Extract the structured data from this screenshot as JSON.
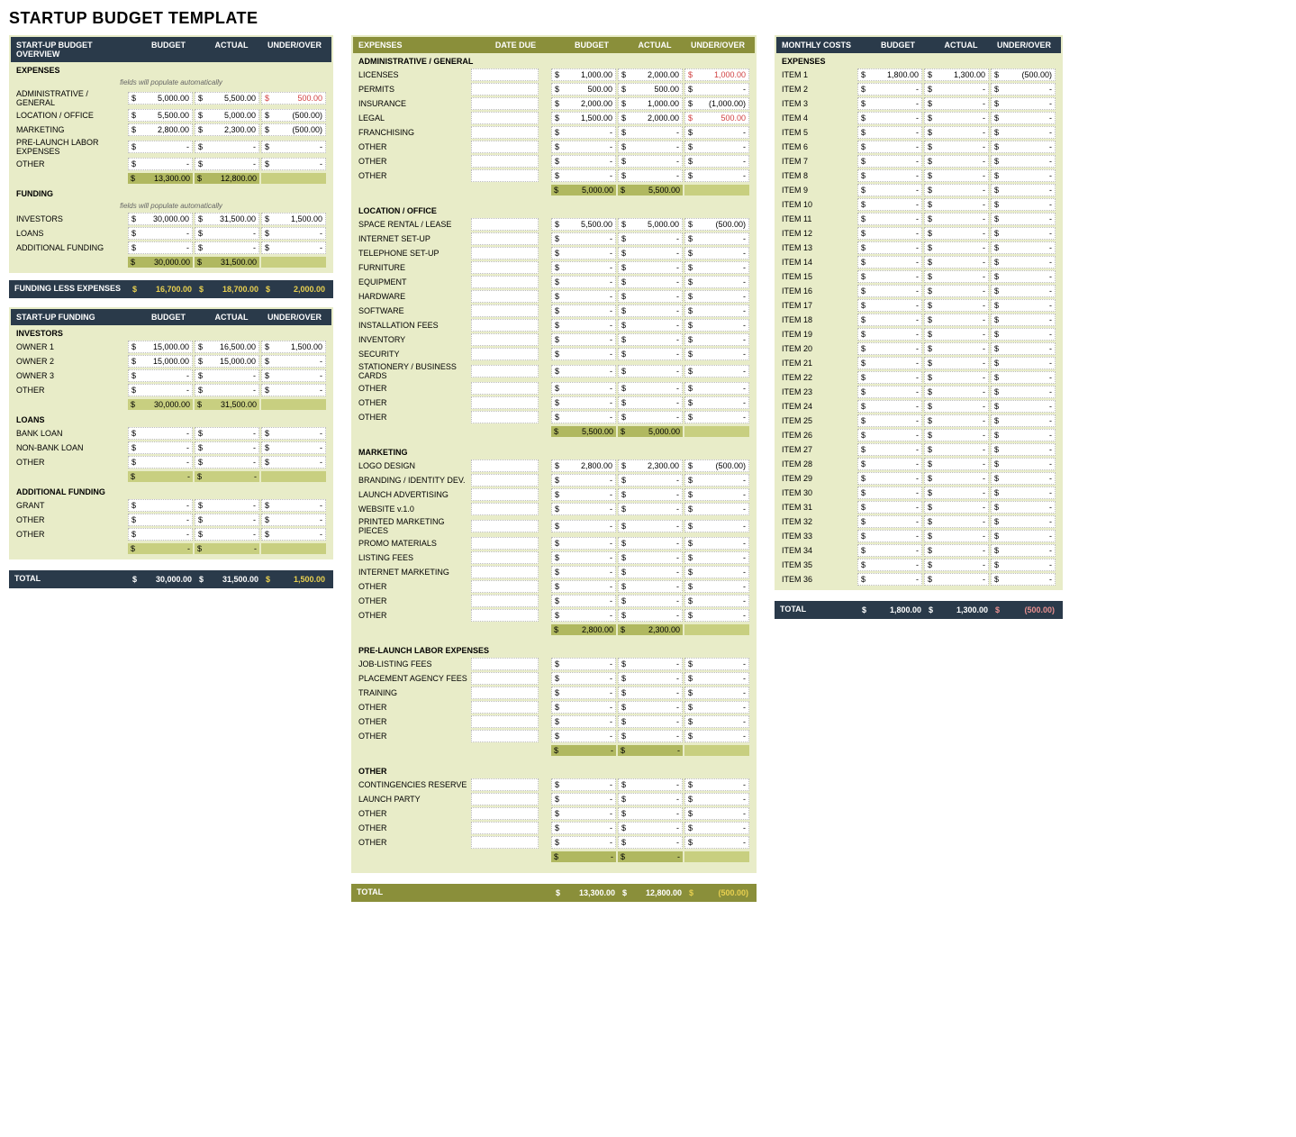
{
  "title": "STARTUP BUDGET TEMPLATE",
  "colors": {
    "header_bg": "#2a3a4a",
    "olive_bg": "#8a8f3a",
    "panel_bg": "#e8ecc8",
    "cell_bg": "#ffffff",
    "subtotal_bg": "#c8cf80",
    "negative": "#d04040",
    "highlight_yellow": "#e8d050"
  },
  "column_headers": {
    "budget": "BUDGET",
    "actual": "ACTUAL",
    "under_over": "UNDER/OVER",
    "date_due": "DATE DUE"
  },
  "overview": {
    "header": "START-UP BUDGET OVERVIEW",
    "auto_note": "fields will populate automatically",
    "expenses_label": "EXPENSES",
    "expenses": [
      {
        "label": "ADMINISTRATIVE / GENERAL",
        "budget": "5,000.00",
        "actual": "5,500.00",
        "uo": "500.00",
        "neg": true
      },
      {
        "label": "LOCATION / OFFICE",
        "budget": "5,500.00",
        "actual": "5,000.00",
        "uo": "(500.00)",
        "neg": false
      },
      {
        "label": "MARKETING",
        "budget": "2,800.00",
        "actual": "2,300.00",
        "uo": "(500.00)",
        "neg": false
      },
      {
        "label": "PRE-LAUNCH LABOR EXPENSES",
        "budget": "-",
        "actual": "-",
        "uo": "-",
        "neg": false
      },
      {
        "label": "OTHER",
        "budget": "-",
        "actual": "-",
        "uo": "-",
        "neg": false
      }
    ],
    "expenses_total": {
      "budget": "13,300.00",
      "actual": "12,800.00"
    },
    "funding_label": "FUNDING",
    "funding": [
      {
        "label": "INVESTORS",
        "budget": "30,000.00",
        "actual": "31,500.00",
        "uo": "1,500.00",
        "neg": false
      },
      {
        "label": "LOANS",
        "budget": "-",
        "actual": "-",
        "uo": "-",
        "neg": false
      },
      {
        "label": "ADDITIONAL FUNDING",
        "budget": "-",
        "actual": "-",
        "uo": "-",
        "neg": false
      }
    ],
    "funding_total": {
      "budget": "30,000.00",
      "actual": "31,500.00"
    },
    "fle": {
      "label": "FUNDING LESS EXPENSES",
      "budget": "16,700.00",
      "actual": "18,700.00",
      "uo": "2,000.00"
    }
  },
  "startup_funding": {
    "header": "START-UP FUNDING",
    "investors_label": "INVESTORS",
    "investors": [
      {
        "label": "OWNER 1",
        "budget": "15,000.00",
        "actual": "16,500.00",
        "uo": "1,500.00"
      },
      {
        "label": "OWNER 2",
        "budget": "15,000.00",
        "actual": "15,000.00",
        "uo": "-"
      },
      {
        "label": "OWNER 3",
        "budget": "-",
        "actual": "-",
        "uo": "-"
      },
      {
        "label": "OTHER",
        "budget": "-",
        "actual": "-",
        "uo": "-"
      }
    ],
    "investors_total": {
      "budget": "30,000.00",
      "actual": "31,500.00"
    },
    "loans_label": "LOANS",
    "loans": [
      {
        "label": "BANK LOAN",
        "budget": "-",
        "actual": "-",
        "uo": "-"
      },
      {
        "label": "NON-BANK LOAN",
        "budget": "-",
        "actual": "-",
        "uo": "-"
      },
      {
        "label": "OTHER",
        "budget": "-",
        "actual": "-",
        "uo": "-"
      }
    ],
    "loans_total": {
      "budget": "-",
      "actual": "-"
    },
    "additional_label": "ADDITIONAL FUNDING",
    "additional": [
      {
        "label": "GRANT",
        "budget": "-",
        "actual": "-",
        "uo": "-"
      },
      {
        "label": "OTHER",
        "budget": "-",
        "actual": "-",
        "uo": "-"
      },
      {
        "label": "OTHER",
        "budget": "-",
        "actual": "-",
        "uo": "-"
      }
    ],
    "additional_total": {
      "budget": "-",
      "actual": "-"
    },
    "total": {
      "label": "TOTAL",
      "budget": "30,000.00",
      "actual": "31,500.00",
      "uo": "1,500.00"
    }
  },
  "expenses_detail": {
    "header": "EXPENSES",
    "sections": [
      {
        "title": "ADMINISTRATIVE / GENERAL",
        "rows": [
          {
            "label": "LICENSES",
            "budget": "1,000.00",
            "actual": "2,000.00",
            "uo": "1,000.00",
            "neg": true
          },
          {
            "label": "PERMITS",
            "budget": "500.00",
            "actual": "500.00",
            "uo": "-",
            "neg": false
          },
          {
            "label": "INSURANCE",
            "budget": "2,000.00",
            "actual": "1,000.00",
            "uo": "(1,000.00)",
            "neg": false
          },
          {
            "label": "LEGAL",
            "budget": "1,500.00",
            "actual": "2,000.00",
            "uo": "500.00",
            "neg": true
          },
          {
            "label": "FRANCHISING",
            "budget": "-",
            "actual": "-",
            "uo": "-",
            "neg": false
          },
          {
            "label": "OTHER",
            "budget": "-",
            "actual": "-",
            "uo": "-",
            "neg": false
          },
          {
            "label": "OTHER",
            "budget": "-",
            "actual": "-",
            "uo": "-",
            "neg": false
          },
          {
            "label": "OTHER",
            "budget": "-",
            "actual": "-",
            "uo": "-",
            "neg": false
          }
        ],
        "subtotal": {
          "budget": "5,000.00",
          "actual": "5,500.00"
        }
      },
      {
        "title": "LOCATION / OFFICE",
        "rows": [
          {
            "label": "SPACE RENTAL / LEASE",
            "budget": "5,500.00",
            "actual": "5,000.00",
            "uo": "(500.00)",
            "neg": false
          },
          {
            "label": "INTERNET SET-UP",
            "budget": "-",
            "actual": "-",
            "uo": "-",
            "neg": false
          },
          {
            "label": "TELEPHONE SET-UP",
            "budget": "-",
            "actual": "-",
            "uo": "-",
            "neg": false
          },
          {
            "label": "FURNITURE",
            "budget": "-",
            "actual": "-",
            "uo": "-",
            "neg": false
          },
          {
            "label": "EQUIPMENT",
            "budget": "-",
            "actual": "-",
            "uo": "-",
            "neg": false
          },
          {
            "label": "HARDWARE",
            "budget": "-",
            "actual": "-",
            "uo": "-",
            "neg": false
          },
          {
            "label": "SOFTWARE",
            "budget": "-",
            "actual": "-",
            "uo": "-",
            "neg": false
          },
          {
            "label": "INSTALLATION FEES",
            "budget": "-",
            "actual": "-",
            "uo": "-",
            "neg": false
          },
          {
            "label": "INVENTORY",
            "budget": "-",
            "actual": "-",
            "uo": "-",
            "neg": false
          },
          {
            "label": "SECURITY",
            "budget": "-",
            "actual": "-",
            "uo": "-",
            "neg": false
          },
          {
            "label": "STATIONERY / BUSINESS CARDS",
            "budget": "-",
            "actual": "-",
            "uo": "-",
            "neg": false
          },
          {
            "label": "OTHER",
            "budget": "-",
            "actual": "-",
            "uo": "-",
            "neg": false
          },
          {
            "label": "OTHER",
            "budget": "-",
            "actual": "-",
            "uo": "-",
            "neg": false
          },
          {
            "label": "OTHER",
            "budget": "-",
            "actual": "-",
            "uo": "-",
            "neg": false
          }
        ],
        "subtotal": {
          "budget": "5,500.00",
          "actual": "5,000.00"
        }
      },
      {
        "title": "MARKETING",
        "rows": [
          {
            "label": "LOGO DESIGN",
            "budget": "2,800.00",
            "actual": "2,300.00",
            "uo": "(500.00)",
            "neg": false
          },
          {
            "label": "BRANDING / IDENTITY DEV.",
            "budget": "-",
            "actual": "-",
            "uo": "-",
            "neg": false
          },
          {
            "label": "LAUNCH ADVERTISING",
            "budget": "-",
            "actual": "-",
            "uo": "-",
            "neg": false
          },
          {
            "label": "WEBSITE v.1.0",
            "budget": "-",
            "actual": "-",
            "uo": "-",
            "neg": false
          },
          {
            "label": "PRINTED MARKETING PIECES",
            "budget": "-",
            "actual": "-",
            "uo": "-",
            "neg": false
          },
          {
            "label": "PROMO MATERIALS",
            "budget": "-",
            "actual": "-",
            "uo": "-",
            "neg": false
          },
          {
            "label": "LISTING FEES",
            "budget": "-",
            "actual": "-",
            "uo": "-",
            "neg": false
          },
          {
            "label": "INTERNET MARKETING",
            "budget": "-",
            "actual": "-",
            "uo": "-",
            "neg": false
          },
          {
            "label": "OTHER",
            "budget": "-",
            "actual": "-",
            "uo": "-",
            "neg": false
          },
          {
            "label": "OTHER",
            "budget": "-",
            "actual": "-",
            "uo": "-",
            "neg": false
          },
          {
            "label": "OTHER",
            "budget": "-",
            "actual": "-",
            "uo": "-",
            "neg": false
          }
        ],
        "subtotal": {
          "budget": "2,800.00",
          "actual": "2,300.00"
        }
      },
      {
        "title": "PRE-LAUNCH LABOR EXPENSES",
        "rows": [
          {
            "label": "JOB-LISTING FEES",
            "budget": "-",
            "actual": "-",
            "uo": "-",
            "neg": false
          },
          {
            "label": "PLACEMENT AGENCY FEES",
            "budget": "-",
            "actual": "-",
            "uo": "-",
            "neg": false
          },
          {
            "label": "TRAINING",
            "budget": "-",
            "actual": "-",
            "uo": "-",
            "neg": false
          },
          {
            "label": "OTHER",
            "budget": "-",
            "actual": "-",
            "uo": "-",
            "neg": false
          },
          {
            "label": "OTHER",
            "budget": "-",
            "actual": "-",
            "uo": "-",
            "neg": false
          },
          {
            "label": "OTHER",
            "budget": "-",
            "actual": "-",
            "uo": "-",
            "neg": false
          }
        ],
        "subtotal": {
          "budget": "-",
          "actual": "-"
        }
      },
      {
        "title": "OTHER",
        "rows": [
          {
            "label": "CONTINGENCIES RESERVE",
            "budget": "-",
            "actual": "-",
            "uo": "-",
            "neg": false
          },
          {
            "label": "LAUNCH PARTY",
            "budget": "-",
            "actual": "-",
            "uo": "-",
            "neg": false
          },
          {
            "label": "OTHER",
            "budget": "-",
            "actual": "-",
            "uo": "-",
            "neg": false
          },
          {
            "label": "OTHER",
            "budget": "-",
            "actual": "-",
            "uo": "-",
            "neg": false
          },
          {
            "label": "OTHER",
            "budget": "-",
            "actual": "-",
            "uo": "-",
            "neg": false
          }
        ],
        "subtotal": {
          "budget": "-",
          "actual": "-"
        }
      }
    ],
    "total": {
      "label": "TOTAL",
      "budget": "13,300.00",
      "actual": "12,800.00",
      "uo": "(500.00)"
    }
  },
  "monthly": {
    "header": "MONTHLY COSTS",
    "expenses_label": "EXPENSES",
    "rows": [
      {
        "label": "ITEM 1",
        "budget": "1,800.00",
        "actual": "1,300.00",
        "uo": "(500.00)"
      },
      {
        "label": "ITEM 2",
        "budget": "-",
        "actual": "-",
        "uo": "-"
      },
      {
        "label": "ITEM 3",
        "budget": "-",
        "actual": "-",
        "uo": "-"
      },
      {
        "label": "ITEM 4",
        "budget": "-",
        "actual": "-",
        "uo": "-"
      },
      {
        "label": "ITEM 5",
        "budget": "-",
        "actual": "-",
        "uo": "-"
      },
      {
        "label": "ITEM 6",
        "budget": "-",
        "actual": "-",
        "uo": "-"
      },
      {
        "label": "ITEM 7",
        "budget": "-",
        "actual": "-",
        "uo": "-"
      },
      {
        "label": "ITEM 8",
        "budget": "-",
        "actual": "-",
        "uo": "-"
      },
      {
        "label": "ITEM 9",
        "budget": "-",
        "actual": "-",
        "uo": "-"
      },
      {
        "label": "ITEM 10",
        "budget": "-",
        "actual": "-",
        "uo": "-"
      },
      {
        "label": "ITEM 11",
        "budget": "-",
        "actual": "-",
        "uo": "-"
      },
      {
        "label": "ITEM 12",
        "budget": "-",
        "actual": "-",
        "uo": "-"
      },
      {
        "label": "ITEM 13",
        "budget": "-",
        "actual": "-",
        "uo": "-"
      },
      {
        "label": "ITEM 14",
        "budget": "-",
        "actual": "-",
        "uo": "-"
      },
      {
        "label": "ITEM 15",
        "budget": "-",
        "actual": "-",
        "uo": "-"
      },
      {
        "label": "ITEM 16",
        "budget": "-",
        "actual": "-",
        "uo": "-"
      },
      {
        "label": "ITEM 17",
        "budget": "-",
        "actual": "-",
        "uo": "-"
      },
      {
        "label": "ITEM 18",
        "budget": "-",
        "actual": "-",
        "uo": "-"
      },
      {
        "label": "ITEM 19",
        "budget": "-",
        "actual": "-",
        "uo": "-"
      },
      {
        "label": "ITEM 20",
        "budget": "-",
        "actual": "-",
        "uo": "-"
      },
      {
        "label": "ITEM 21",
        "budget": "-",
        "actual": "-",
        "uo": "-"
      },
      {
        "label": "ITEM 22",
        "budget": "-",
        "actual": "-",
        "uo": "-"
      },
      {
        "label": "ITEM 23",
        "budget": "-",
        "actual": "-",
        "uo": "-"
      },
      {
        "label": "ITEM 24",
        "budget": "-",
        "actual": "-",
        "uo": "-"
      },
      {
        "label": "ITEM 25",
        "budget": "-",
        "actual": "-",
        "uo": "-"
      },
      {
        "label": "ITEM 26",
        "budget": "-",
        "actual": "-",
        "uo": "-"
      },
      {
        "label": "ITEM 27",
        "budget": "-",
        "actual": "-",
        "uo": "-"
      },
      {
        "label": "ITEM 28",
        "budget": "-",
        "actual": "-",
        "uo": "-"
      },
      {
        "label": "ITEM 29",
        "budget": "-",
        "actual": "-",
        "uo": "-"
      },
      {
        "label": "ITEM 30",
        "budget": "-",
        "actual": "-",
        "uo": "-"
      },
      {
        "label": "ITEM 31",
        "budget": "-",
        "actual": "-",
        "uo": "-"
      },
      {
        "label": "ITEM 32",
        "budget": "-",
        "actual": "-",
        "uo": "-"
      },
      {
        "label": "ITEM 33",
        "budget": "-",
        "actual": "-",
        "uo": "-"
      },
      {
        "label": "ITEM 34",
        "budget": "-",
        "actual": "-",
        "uo": "-"
      },
      {
        "label": "ITEM 35",
        "budget": "-",
        "actual": "-",
        "uo": "-"
      },
      {
        "label": "ITEM 36",
        "budget": "-",
        "actual": "-",
        "uo": "-"
      }
    ],
    "total": {
      "label": "TOTAL",
      "budget": "1,800.00",
      "actual": "1,300.00",
      "uo": "(500.00)"
    }
  }
}
